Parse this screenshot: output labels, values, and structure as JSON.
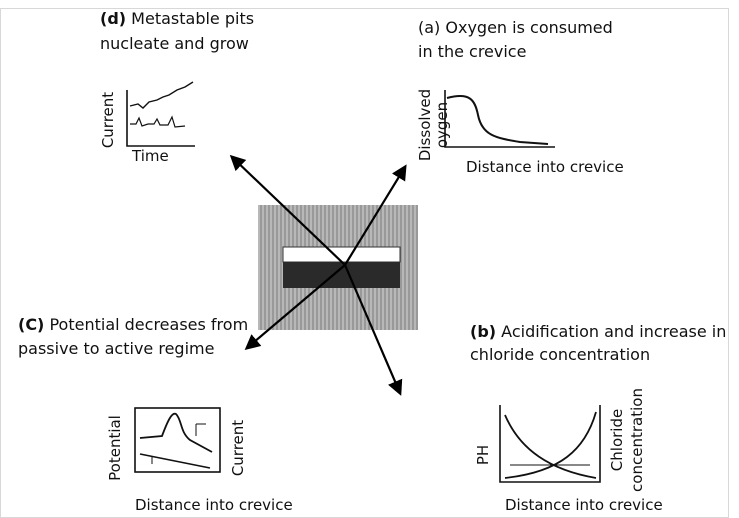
{
  "panels": {
    "d": {
      "letter": "(d)",
      "caption": [
        "Metastable pits",
        "nucleate and grow"
      ],
      "y_label": "Current",
      "x_label": "Time"
    },
    "a": {
      "letter": "(a)",
      "caption": [
        "Oxygen is consumed",
        "in the crevice"
      ],
      "y_label": [
        "Dissolved",
        "oygen"
      ],
      "x_label": "Distance into crevice"
    },
    "c": {
      "letter": "(C)",
      "caption": [
        "Potential decreases from",
        "passive to active regime"
      ],
      "y_label": "Potential",
      "y2_label": "Current",
      "x_label": "Distance into crevice"
    },
    "b": {
      "letter": "(b)",
      "caption": [
        "Acidification and increase in",
        "chloride concentration"
      ],
      "y_label": "PH",
      "y2_label": [
        "Chloride",
        "concentration"
      ],
      "x_label": "Distance into crevice"
    }
  }
}
